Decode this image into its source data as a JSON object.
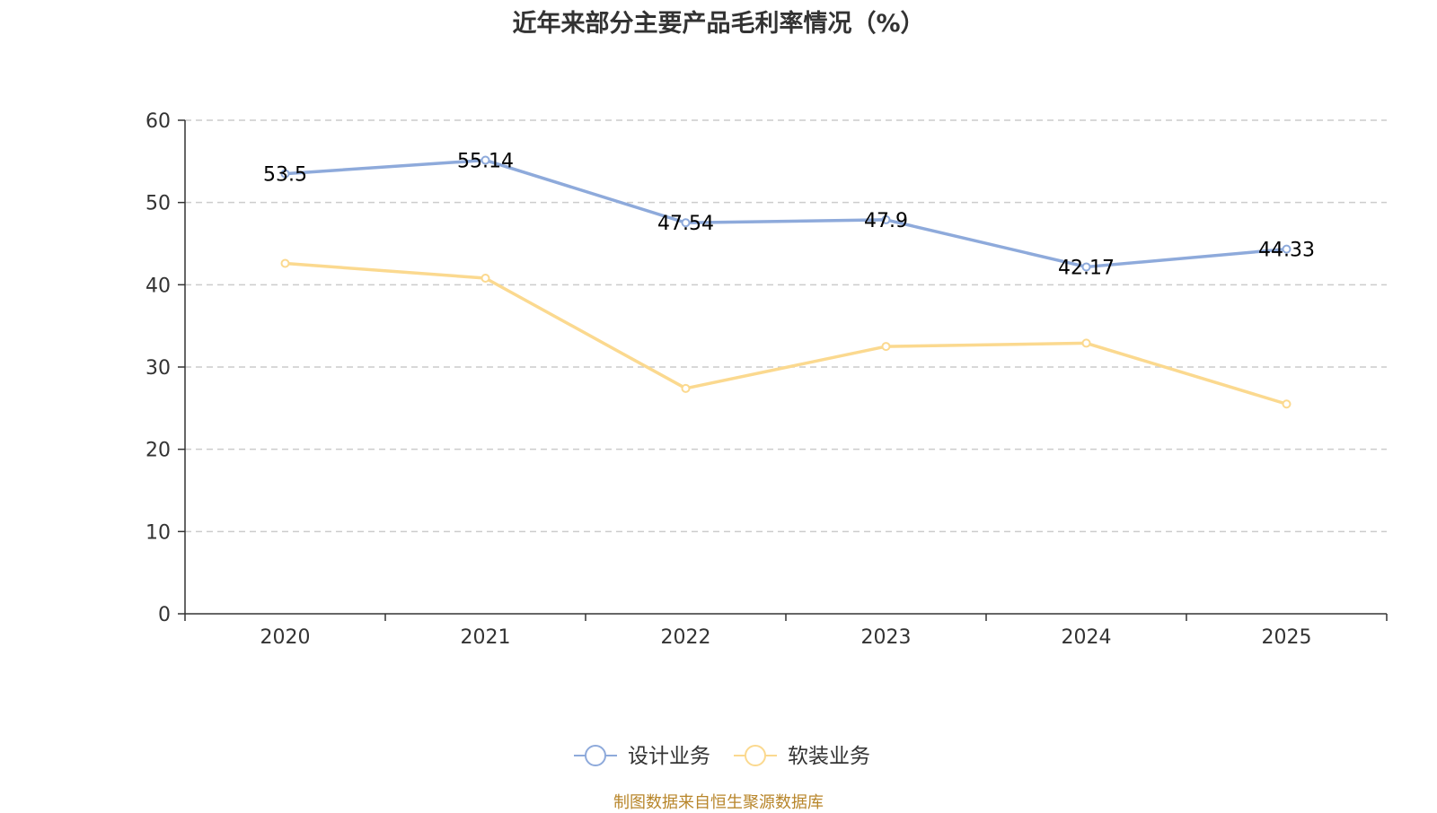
{
  "chart_data": {
    "type": "line",
    "title": "近年来部分主要产品毛利率情况（%）",
    "categories": [
      "2020",
      "2021",
      "2022",
      "2023",
      "2024",
      "2025"
    ],
    "series": [
      {
        "name": "设计业务",
        "color": "#8eaadb",
        "values": [
          53.5,
          55.14,
          47.54,
          47.9,
          42.17,
          44.33
        ],
        "show_labels": true
      },
      {
        "name": "软装业务",
        "color": "#fbd98f",
        "values": [
          42.6,
          40.8,
          27.4,
          32.5,
          32.9,
          25.5
        ],
        "show_labels": false
      }
    ],
    "ylim": [
      0,
      60
    ],
    "yticks": [
      0,
      10,
      20,
      30,
      40,
      50,
      60
    ],
    "grid": true,
    "legend_position": "bottom-center",
    "xlabel": "",
    "ylabel": ""
  },
  "source_note": "制图数据来自恒生聚源数据库"
}
